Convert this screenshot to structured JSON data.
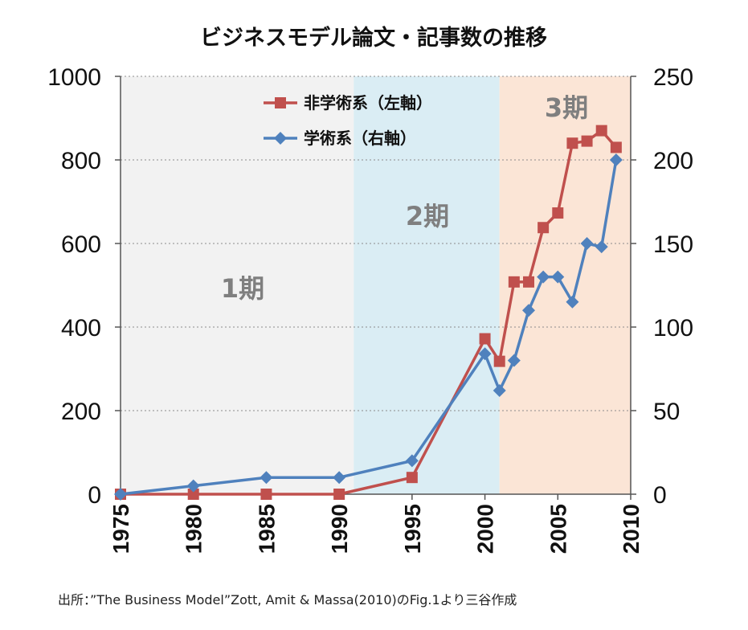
{
  "chart_data": {
    "type": "line",
    "title": "ビジネスモデル論文・記事数の推移",
    "xlim": [
      1975,
      2010
    ],
    "x_ticks": [
      "1975",
      "1980",
      "1985",
      "1990",
      "1995",
      "2000",
      "2005",
      "2010"
    ],
    "ylim_left": [
      0,
      1000
    ],
    "y_ticks_left": [
      "0",
      "200",
      "400",
      "600",
      "800",
      "1000"
    ],
    "ylim_right": [
      0,
      250
    ],
    "y_ticks_right": [
      "0",
      "50",
      "100",
      "150",
      "200",
      "250"
    ],
    "grid": "horizontal-dotted",
    "legend_position": "top-center",
    "periods": [
      {
        "label": "1期",
        "start": 1975,
        "end": 1991,
        "color": "#f2f2f2"
      },
      {
        "label": "2期",
        "start": 1991,
        "end": 2001,
        "color": "#daedf4"
      },
      {
        "label": "3期",
        "start": 2001,
        "end": 2010,
        "color": "#fbe5d6"
      }
    ],
    "series": [
      {
        "name": "非学術系（左軸）",
        "axis": "left",
        "color": "#c0504d",
        "marker": "square",
        "x": [
          1975,
          1980,
          1985,
          1990,
          1995,
          2000,
          2001,
          2002,
          2003,
          2004,
          2005,
          2006,
          2007,
          2008,
          2009
        ],
        "y": [
          0,
          0,
          0,
          0,
          40,
          372,
          318,
          508,
          508,
          638,
          673,
          840,
          845,
          870,
          830
        ]
      },
      {
        "name": "学術系（右軸）",
        "axis": "right",
        "color": "#4f81bd",
        "marker": "diamond",
        "x": [
          1975,
          1980,
          1985,
          1990,
          1995,
          2000,
          2001,
          2002,
          2003,
          2004,
          2005,
          2006,
          2007,
          2008,
          2009
        ],
        "y": [
          0,
          5,
          10,
          10,
          20,
          84,
          62,
          80,
          110,
          130,
          130,
          115,
          150,
          148,
          200
        ]
      }
    ],
    "source": "出所：”The Business Model”Zott, Amit & Massa(2010)のFig.1より三谷作成"
  }
}
